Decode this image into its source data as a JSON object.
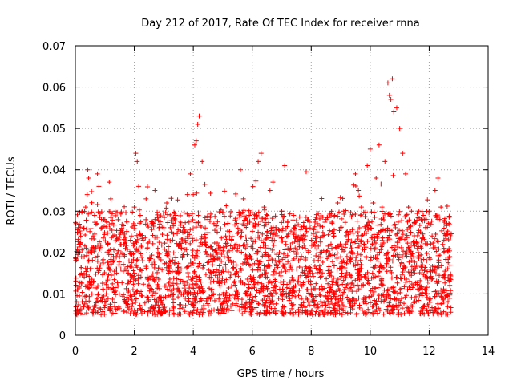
{
  "chart_data": {
    "type": "scatter",
    "title": "Day 212 of 2017, Rate Of TEC Index for receiver rnna",
    "xlabel": "GPS time / hours",
    "ylabel": "ROTI / TECUs",
    "xlim": [
      0,
      14
    ],
    "ylim": [
      0,
      0.07
    ],
    "xticks": [
      0,
      2,
      4,
      6,
      8,
      10,
      12,
      14
    ],
    "yticks": [
      0,
      0.01,
      0.02,
      0.03,
      0.04,
      0.05,
      0.06,
      0.07
    ],
    "xtick_labels": [
      "0",
      "2",
      "4",
      "6",
      "8",
      "10",
      "12",
      "14"
    ],
    "ytick_labels": [
      "0",
      "0.01",
      "0.02",
      "0.03",
      "0.04",
      "0.05",
      "0.06",
      "0.07"
    ],
    "grid": true,
    "marker": "+",
    "color": "#ff0000",
    "series": [
      {
        "name": "ROTI",
        "x": [
          0.02,
          0.05,
          0.08,
          0.1,
          0.15,
          0.2,
          0.25,
          0.3,
          0.35,
          0.4,
          0.42,
          0.45,
          0.5,
          0.55,
          0.6,
          0.65,
          0.7,
          0.75,
          0.8,
          0.85,
          0.9,
          0.95,
          1.0,
          1.05,
          1.1,
          1.15,
          1.2,
          1.25,
          1.3,
          1.35,
          1.4,
          1.5,
          1.6,
          1.7,
          1.8,
          1.9,
          2.0,
          2.05,
          2.1,
          2.15,
          2.2,
          2.3,
          2.4,
          2.5,
          2.6,
          2.7,
          2.8,
          2.9,
          3.0,
          3.1,
          3.2,
          3.3,
          3.4,
          3.5,
          3.6,
          3.7,
          3.8,
          3.9,
          4.0,
          4.05,
          4.1,
          4.15,
          4.2,
          4.3,
          4.4,
          4.5,
          4.6,
          4.7,
          4.8,
          4.9,
          5.0,
          5.1,
          5.2,
          5.3,
          5.4,
          5.5,
          5.6,
          5.7,
          5.8,
          5.9,
          6.0,
          6.1,
          6.2,
          6.3,
          6.4,
          6.5,
          6.6,
          6.7,
          6.8,
          6.9,
          7.0,
          7.1,
          7.2,
          7.3,
          7.4,
          7.5,
          7.6,
          7.7,
          7.8,
          7.9,
          8.0,
          8.1,
          8.2,
          8.3,
          8.4,
          8.5,
          8.6,
          8.7,
          8.8,
          8.9,
          9.0,
          9.1,
          9.2,
          9.3,
          9.4,
          9.5,
          9.6,
          9.7,
          9.8,
          9.9,
          10.0,
          10.1,
          10.2,
          10.3,
          10.4,
          10.5,
          10.6,
          10.65,
          10.7,
          10.75,
          10.8,
          10.9,
          11.0,
          11.1,
          11.2,
          11.3,
          11.4,
          11.5,
          11.6,
          11.7,
          11.8,
          11.9,
          12.0,
          12.1,
          12.2,
          12.3,
          12.4,
          12.5,
          12.6,
          12.7
        ],
        "y": [
          0.027,
          0.005,
          0.011,
          0.026,
          0.02,
          0.015,
          0.009,
          0.019,
          0.031,
          0.034,
          0.04,
          0.038,
          0.016,
          0.012,
          0.024,
          0.029,
          0.021,
          0.039,
          0.036,
          0.017,
          0.026,
          0.011,
          0.028,
          0.01,
          0.022,
          0.037,
          0.033,
          0.027,
          0.018,
          0.03,
          0.016,
          0.019,
          0.025,
          0.021,
          0.015,
          0.024,
          0.031,
          0.044,
          0.042,
          0.036,
          0.029,
          0.023,
          0.033,
          0.012,
          0.027,
          0.035,
          0.02,
          0.009,
          0.026,
          0.032,
          0.018,
          0.023,
          0.029,
          0.015,
          0.021,
          0.025,
          0.034,
          0.039,
          0.034,
          0.046,
          0.047,
          0.051,
          0.053,
          0.042,
          0.022,
          0.019,
          0.014,
          0.027,
          0.02,
          0.012,
          0.016,
          0.024,
          0.018,
          0.023,
          0.013,
          0.021,
          0.04,
          0.033,
          0.019,
          0.029,
          0.017,
          0.027,
          0.042,
          0.044,
          0.031,
          0.025,
          0.035,
          0.037,
          0.026,
          0.018,
          0.03,
          0.041,
          0.024,
          0.021,
          0.029,
          0.019,
          0.023,
          0.016,
          0.021,
          0.013,
          0.011,
          0.018,
          0.025,
          0.02,
          0.024,
          0.028,
          0.015,
          0.021,
          0.029,
          0.032,
          0.026,
          0.03,
          0.012,
          0.018,
          0.02,
          0.039,
          0.035,
          0.031,
          0.022,
          0.041,
          0.045,
          0.032,
          0.038,
          0.046,
          0.031,
          0.042,
          0.061,
          0.058,
          0.057,
          0.062,
          0.054,
          0.055,
          0.05,
          0.044,
          0.039,
          0.031,
          0.03,
          0.027,
          0.021,
          0.025,
          0.029,
          0.028,
          0.03,
          0.024,
          0.035,
          0.038,
          0.031,
          0.023,
          0.027,
          0.019
        ]
      }
    ],
    "dense_cloud": {
      "description_of_band": "values",
      "x_start": 0,
      "x_end": 12.75,
      "baseline_low": 0.005,
      "baseline_high": 0.03,
      "point_count": 2600
    }
  }
}
